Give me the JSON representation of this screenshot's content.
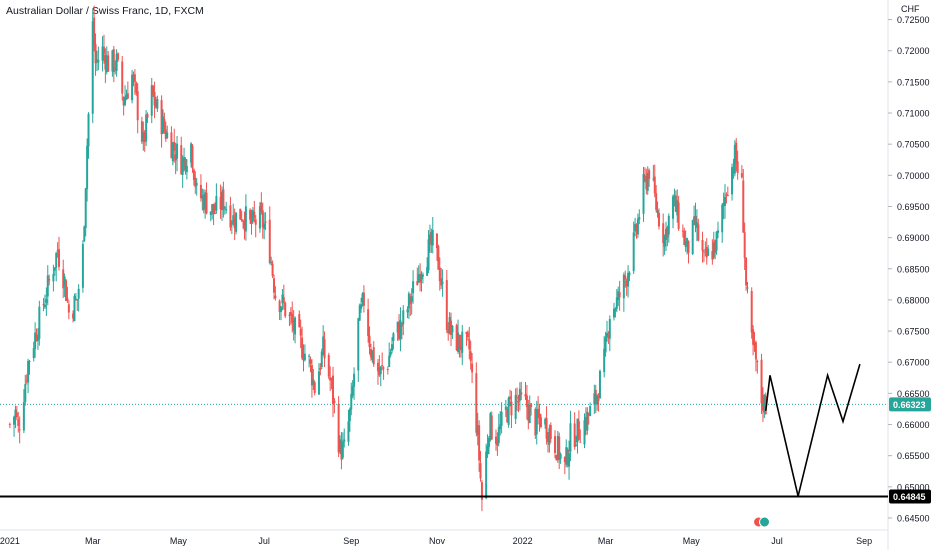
{
  "header": {
    "title": "Australian Dollar / Swiss Franc, 1D, FXCM"
  },
  "colors": {
    "up": "#26a69a",
    "down": "#ef5350",
    "current_price_bg": "#26a69a",
    "support_line": "#000000",
    "support_price_bg": "#000000",
    "projection": "#000000",
    "axis_text": "#131722",
    "axis_border": "#e0e3eb"
  },
  "chart_data": {
    "type": "candlestick",
    "title": "Australian Dollar / Swiss Franc, 1D, FXCM",
    "currency_label": "CHF",
    "ylim": [
      0.6405,
      0.7275
    ],
    "y_ticks": [
      "0.64500",
      "0.65000",
      "0.65500",
      "0.66000",
      "0.66500",
      "0.67000",
      "0.67500",
      "0.68000",
      "0.68500",
      "0.69000",
      "0.69500",
      "0.70000",
      "0.70500",
      "0.71000",
      "0.71500",
      "0.72000",
      "0.72500"
    ],
    "x_ticks": [
      "2021",
      "Mar",
      "May",
      "Jul",
      "Sep",
      "Nov",
      "2022",
      "Mar",
      "May",
      "Jul",
      "Sep"
    ],
    "current_price": "0.66323",
    "support_price": "0.64845",
    "price_path": [
      [
        "2021-01-01",
        0.66
      ],
      [
        "2021-01-05",
        0.662
      ],
      [
        "2021-01-07",
        0.659
      ],
      [
        "2021-01-14",
        0.67
      ],
      [
        "2021-01-21",
        0.676
      ],
      [
        "2021-01-28",
        0.682
      ],
      [
        "2021-02-04",
        0.688
      ],
      [
        "2021-02-09",
        0.683
      ],
      [
        "2021-02-12",
        0.678
      ],
      [
        "2021-02-18",
        0.68
      ],
      [
        "2021-02-22",
        0.688
      ],
      [
        "2021-02-25",
        0.705
      ],
      [
        "2021-03-01",
        0.724
      ],
      [
        "2021-03-03",
        0.718
      ],
      [
        "2021-03-08",
        0.72
      ],
      [
        "2021-03-12",
        0.718
      ],
      [
        "2021-03-18",
        0.718
      ],
      [
        "2021-03-23",
        0.712
      ],
      [
        "2021-03-29",
        0.716
      ],
      [
        "2021-04-06",
        0.705
      ],
      [
        "2021-04-12",
        0.713
      ],
      [
        "2021-04-20",
        0.708
      ],
      [
        "2021-04-26",
        0.705
      ],
      [
        "2021-05-04",
        0.702
      ],
      [
        "2021-05-10",
        0.705
      ],
      [
        "2021-05-14",
        0.697
      ],
      [
        "2021-05-20",
        0.696
      ],
      [
        "2021-05-26",
        0.694
      ],
      [
        "2021-06-02",
        0.696
      ],
      [
        "2021-06-09",
        0.693
      ],
      [
        "2021-06-15",
        0.694
      ],
      [
        "2021-06-21",
        0.692
      ],
      [
        "2021-06-28",
        0.693
      ],
      [
        "2021-07-01",
        0.692
      ],
      [
        "2021-07-05",
        0.688
      ],
      [
        "2021-07-09",
        0.681
      ],
      [
        "2021-07-15",
        0.679
      ],
      [
        "2021-07-21",
        0.676
      ],
      [
        "2021-07-27",
        0.673
      ],
      [
        "2021-08-02",
        0.67
      ],
      [
        "2021-08-06",
        0.666
      ],
      [
        "2021-08-12",
        0.672
      ],
      [
        "2021-08-18",
        0.666
      ],
      [
        "2021-08-24",
        0.656
      ],
      [
        "2021-08-27",
        0.656
      ],
      [
        "2021-09-01",
        0.663
      ],
      [
        "2021-09-06",
        0.676
      ],
      [
        "2021-09-10",
        0.68
      ],
      [
        "2021-09-15",
        0.672
      ],
      [
        "2021-09-21",
        0.668
      ],
      [
        "2021-09-27",
        0.67
      ],
      [
        "2021-10-01",
        0.674
      ],
      [
        "2021-10-07",
        0.676
      ],
      [
        "2021-10-13",
        0.68
      ],
      [
        "2021-10-20",
        0.685
      ],
      [
        "2021-10-26",
        0.688
      ],
      [
        "2021-10-29",
        0.689
      ],
      [
        "2021-11-02",
        0.686
      ],
      [
        "2021-11-08",
        0.677
      ],
      [
        "2021-11-12",
        0.674
      ],
      [
        "2021-11-18",
        0.673
      ],
      [
        "2021-11-24",
        0.672
      ],
      [
        "2021-11-30",
        0.658
      ],
      [
        "2021-12-03",
        0.648
      ],
      [
        "2021-12-08",
        0.66
      ],
      [
        "2021-12-14",
        0.658
      ],
      [
        "2021-12-20",
        0.662
      ],
      [
        "2021-12-27",
        0.664
      ],
      [
        "2022-01-04",
        0.663
      ],
      [
        "2022-01-10",
        0.66
      ],
      [
        "2022-01-14",
        0.661
      ],
      [
        "2022-01-20",
        0.659
      ],
      [
        "2022-01-26",
        0.656
      ],
      [
        "2022-01-31",
        0.653
      ],
      [
        "2022-02-04",
        0.658
      ],
      [
        "2022-02-10",
        0.659
      ],
      [
        "2022-02-16",
        0.661
      ],
      [
        "2022-02-22",
        0.664
      ],
      [
        "2022-02-28",
        0.67
      ],
      [
        "2022-03-04",
        0.678
      ],
      [
        "2022-03-10",
        0.68
      ],
      [
        "2022-03-16",
        0.684
      ],
      [
        "2022-03-22",
        0.69
      ],
      [
        "2022-03-28",
        0.698
      ],
      [
        "2022-04-01",
        0.701
      ],
      [
        "2022-04-06",
        0.695
      ],
      [
        "2022-04-12",
        0.69
      ],
      [
        "2022-04-18",
        0.696
      ],
      [
        "2022-04-22",
        0.693
      ],
      [
        "2022-04-28",
        0.688
      ],
      [
        "2022-05-04",
        0.692
      ],
      [
        "2022-05-10",
        0.686
      ],
      [
        "2022-05-16",
        0.688
      ],
      [
        "2022-05-20",
        0.69
      ],
      [
        "2022-05-26",
        0.698
      ],
      [
        "2022-06-01",
        0.703
      ],
      [
        "2022-06-06",
        0.698
      ],
      [
        "2022-06-09",
        0.682
      ],
      [
        "2022-06-13",
        0.673
      ],
      [
        "2022-06-16",
        0.67
      ],
      [
        "2022-06-20",
        0.664
      ],
      [
        "2022-06-23",
        0.6632
      ]
    ],
    "projection": [
      [
        "2022-06-23",
        0.6622
      ],
      [
        "2022-06-26",
        0.6679
      ],
      [
        "2022-07-16",
        0.6485
      ],
      [
        "2022-08-06",
        0.6679
      ],
      [
        "2022-08-17",
        0.6605
      ],
      [
        "2022-08-29",
        0.6697
      ]
    ],
    "x_range": [
      "2020-12-25",
      "2022-09-18"
    ]
  }
}
